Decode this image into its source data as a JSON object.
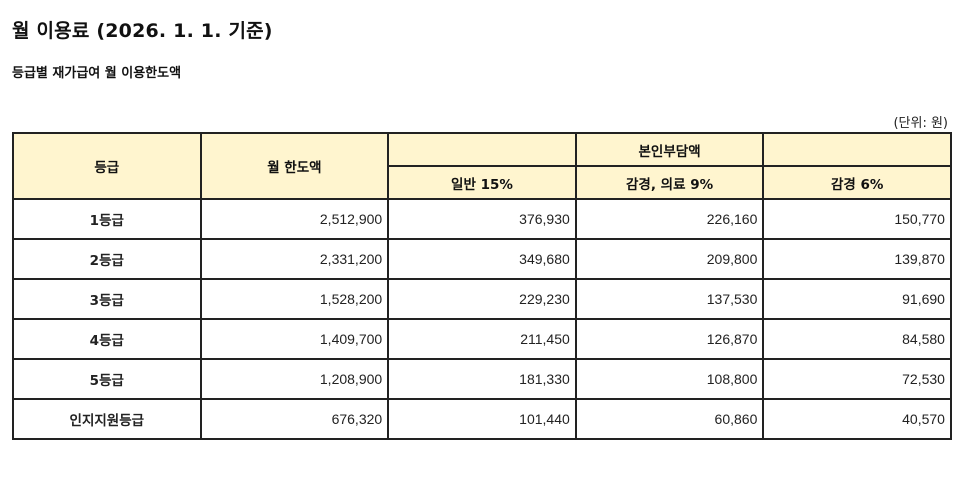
{
  "page": {
    "title": "월 이용료 (2026. 1. 1. 기준)",
    "subtitle": "등급별 재가급여 월 이용한도액",
    "unit_note": "(단위: 원)"
  },
  "table": {
    "header": {
      "grade": "등급",
      "monthly_limit": "월 한도액",
      "copay_group": "본인부담액",
      "copay_columns": [
        "일반 15%",
        "감경, 의료 9%",
        "감경 6%"
      ]
    },
    "rows": [
      {
        "grade": "1등급",
        "limit": "2,512,900",
        "general": "376,930",
        "reduced9": "226,160",
        "reduced6": "150,770"
      },
      {
        "grade": "2등급",
        "limit": "2,331,200",
        "general": "349,680",
        "reduced9": "209,800",
        "reduced6": "139,870"
      },
      {
        "grade": "3등급",
        "limit": "1,528,200",
        "general": "229,230",
        "reduced9": "137,530",
        "reduced6": "91,690"
      },
      {
        "grade": "4등급",
        "limit": "1,409,700",
        "general": "211,450",
        "reduced9": "126,870",
        "reduced6": "84,580"
      },
      {
        "grade": "5등급",
        "limit": "1,208,900",
        "general": "181,330",
        "reduced9": "108,800",
        "reduced6": "72,530"
      },
      {
        "grade": "인지지원등급",
        "limit": "676,320",
        "general": "101,440",
        "reduced9": "60,860",
        "reduced6": "40,570"
      }
    ]
  },
  "colors": {
    "header_bg": "#fff5cf",
    "border": "#222222"
  }
}
